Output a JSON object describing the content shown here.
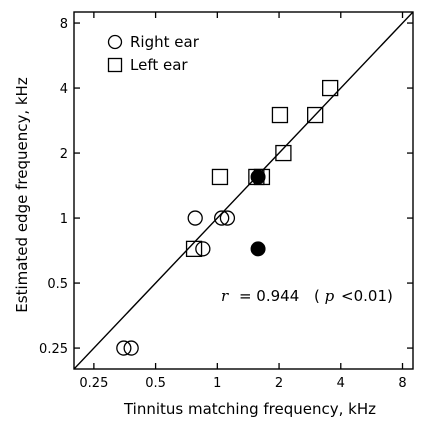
{
  "chart_data": {
    "type": "scatter",
    "xlabel": "Tinnitus matching frequency, kHz",
    "ylabel": "Estimated edge frequency, kHz",
    "scale": "log",
    "xlim": [
      0.2,
      9
    ],
    "ylim": [
      0.2,
      9
    ],
    "x_ticks": [
      0.25,
      0.5,
      1,
      2,
      4,
      8
    ],
    "x_tick_labels": [
      "0.25",
      "0.5",
      "1",
      "2",
      "4",
      "8"
    ],
    "y_ticks": [
      0.25,
      0.5,
      1,
      2,
      4,
      8
    ],
    "y_tick_labels": [
      "0.25",
      "0.5",
      "1",
      "2",
      "4",
      "8"
    ],
    "legend": {
      "placement": "top-left",
      "entries": [
        {
          "label": "Right ear",
          "marker": "circle"
        },
        {
          "label": "Left ear",
          "marker": "square"
        }
      ]
    },
    "series": [
      {
        "name": "Right ear",
        "marker": "circle-open",
        "points": [
          {
            "x": 0.35,
            "y": 0.25
          },
          {
            "x": 0.38,
            "y": 0.25
          },
          {
            "x": 0.78,
            "y": 1.0
          },
          {
            "x": 0.85,
            "y": 0.72
          },
          {
            "x": 1.05,
            "y": 1.0
          },
          {
            "x": 1.12,
            "y": 1.0
          }
        ]
      },
      {
        "name": "Left ear",
        "marker": "square-open",
        "points": [
          {
            "x": 0.77,
            "y": 0.72
          },
          {
            "x": 1.03,
            "y": 1.55
          },
          {
            "x": 1.55,
            "y": 1.55
          },
          {
            "x": 1.65,
            "y": 1.55
          },
          {
            "x": 2.02,
            "y": 3.0
          },
          {
            "x": 2.1,
            "y": 2.0
          },
          {
            "x": 3.0,
            "y": 3.0
          },
          {
            "x": 3.55,
            "y": 4.0
          }
        ]
      },
      {
        "name": "",
        "marker": "circle-filled",
        "points": [
          {
            "x": 1.58,
            "y": 1.55
          },
          {
            "x": 1.58,
            "y": 0.72
          }
        ]
      }
    ],
    "regression_line": {
      "from": [
        0.2,
        0.2
      ],
      "to": [
        10,
        10
      ]
    },
    "annotation": {
      "r_symbol": "r",
      "r_value": "= 0.944",
      "p_open": "(",
      "p_symbol": "p",
      "p_value": "<0.01)"
    },
    "grid": false,
    "colors": {
      "marker": "#000000",
      "line": "#000000",
      "axis": "#000000"
    }
  }
}
